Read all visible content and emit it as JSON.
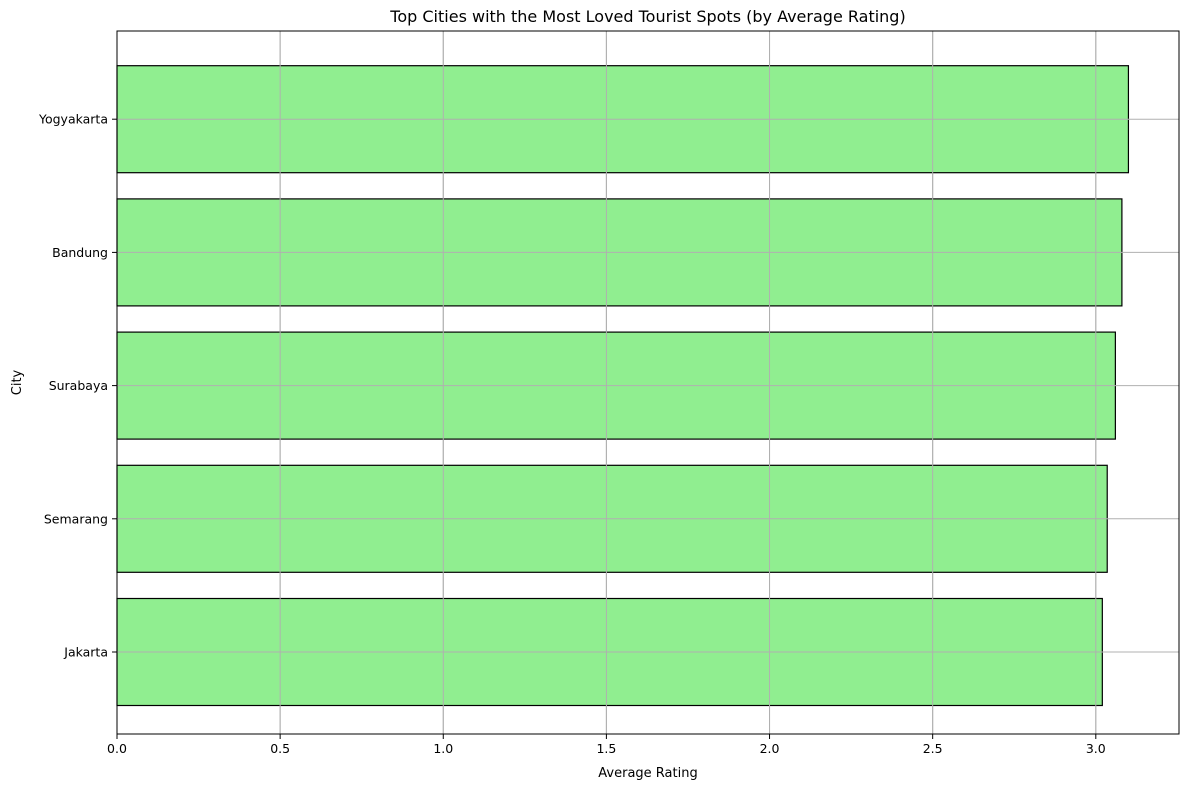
{
  "chart_data": {
    "type": "bar",
    "orientation": "horizontal",
    "title": "Top Cities with the Most Loved Tourist Spots (by Average Rating)",
    "xlabel": "Average Rating",
    "ylabel": "City",
    "categories": [
      "Jakarta",
      "Semarang",
      "Surabaya",
      "Bandung",
      "Yogyakarta"
    ],
    "values": [
      3.02,
      3.035,
      3.06,
      3.08,
      3.1
    ],
    "xlim": [
      0,
      3.255
    ],
    "xticks": [
      0.0,
      0.5,
      1.0,
      1.5,
      2.0,
      2.5,
      3.0
    ],
    "xtick_labels": [
      "0.0",
      "0.5",
      "1.0",
      "1.5",
      "2.0",
      "2.5",
      "3.0"
    ],
    "grid": true,
    "bar_color": "#90ee90",
    "bar_edge_color": "#000000",
    "grid_color": "#b0b0b0"
  }
}
